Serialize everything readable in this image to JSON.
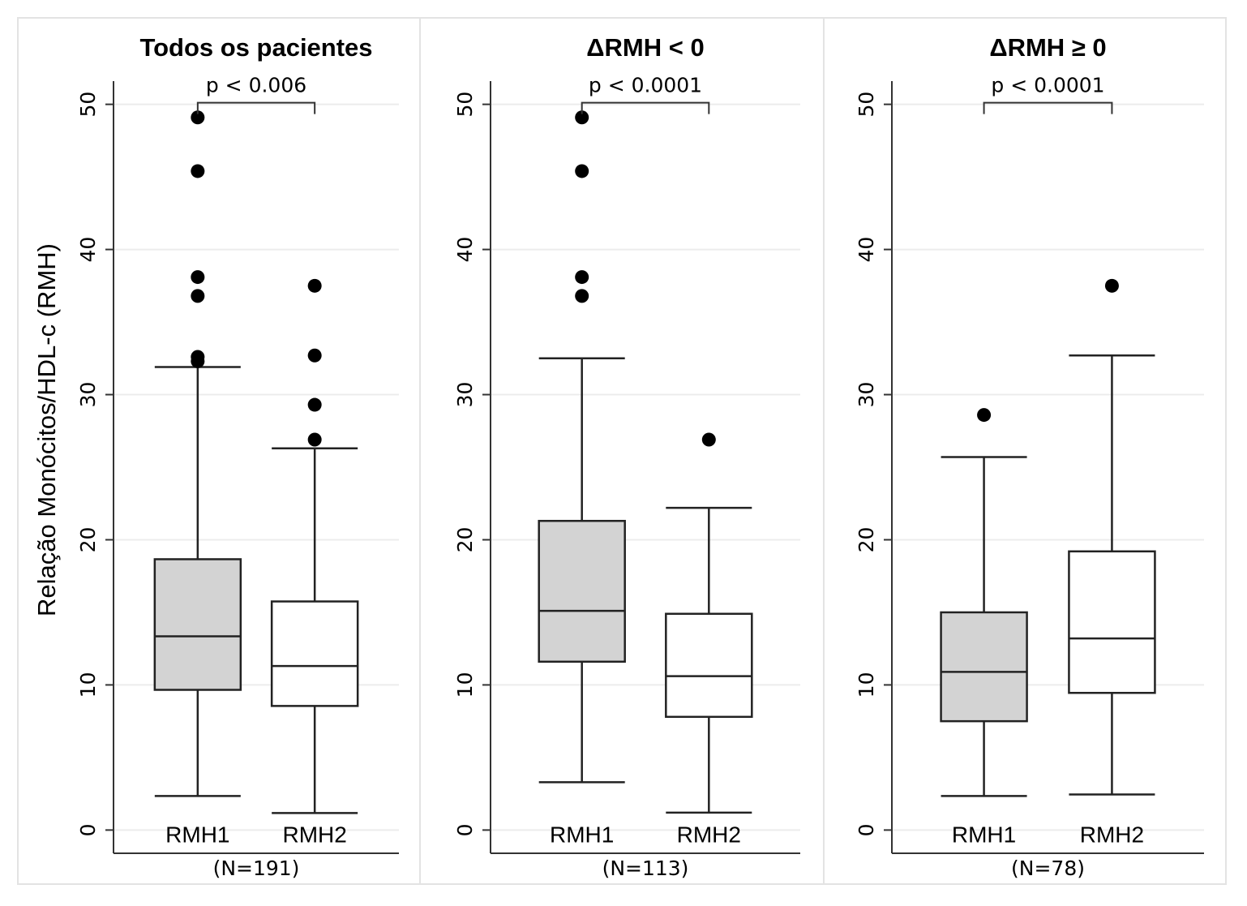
{
  "chart_data": [
    {
      "type": "box",
      "title": "Todos os pacientes",
      "ylabel": "Relação Monócitos/HDL-c (RMH)",
      "categories": [
        "RMH1",
        "RMH2"
      ],
      "colors": [
        "#d3d3d3",
        "#ffffff"
      ],
      "boxes": [
        {
          "whislo": 2.35,
          "q1": 9.66,
          "med": 13.35,
          "q3": 18.66,
          "whishi": 31.9,
          "fliers": [
            49.1,
            45.4,
            38.1,
            36.8,
            32.6,
            32.3
          ]
        },
        {
          "whislo": 1.17,
          "q1": 8.55,
          "med": 11.3,
          "q3": 15.75,
          "whishi": 26.3,
          "fliers": [
            37.5,
            32.7,
            29.3,
            26.9
          ]
        }
      ],
      "annotation": "p < 0.006",
      "xlabel": "(N=191)",
      "ylim": [
        -1.6,
        51.6
      ],
      "yticks": [
        0,
        10,
        20,
        30,
        40,
        50
      ],
      "grid": true
    },
    {
      "type": "box",
      "title": "ΔRMH < 0",
      "categories": [
        "RMH1",
        "RMH2"
      ],
      "colors": [
        "#d3d3d3",
        "#ffffff"
      ],
      "boxes": [
        {
          "whislo": 3.3,
          "q1": 11.6,
          "med": 15.1,
          "q3": 21.3,
          "whishi": 32.5,
          "fliers": [
            49.1,
            45.4,
            38.1,
            36.8
          ]
        },
        {
          "whislo": 1.2,
          "q1": 7.8,
          "med": 10.6,
          "q3": 14.9,
          "whishi": 22.2,
          "fliers": [
            26.9
          ]
        }
      ],
      "annotation": "p < 0.0001",
      "xlabel": "(N=113)",
      "ylim": [
        -1.6,
        51.6
      ],
      "yticks": [
        0,
        10,
        20,
        30,
        40,
        50
      ],
      "grid": true
    },
    {
      "type": "box",
      "title": "ΔRMH ≥ 0",
      "categories": [
        "RMH1",
        "RMH2"
      ],
      "colors": [
        "#d3d3d3",
        "#ffffff"
      ],
      "boxes": [
        {
          "whislo": 2.35,
          "q1": 7.5,
          "med": 10.9,
          "q3": 15.0,
          "whishi": 25.7,
          "fliers": [
            28.6
          ]
        },
        {
          "whislo": 2.45,
          "q1": 9.45,
          "med": 13.2,
          "q3": 19.2,
          "whishi": 32.7,
          "fliers": [
            37.5
          ]
        }
      ],
      "annotation": "p < 0.0001",
      "xlabel": "(N=78)",
      "ylim": [
        -1.6,
        51.6
      ],
      "yticks": [
        0,
        10,
        20,
        30,
        40,
        50
      ],
      "grid": true
    }
  ]
}
